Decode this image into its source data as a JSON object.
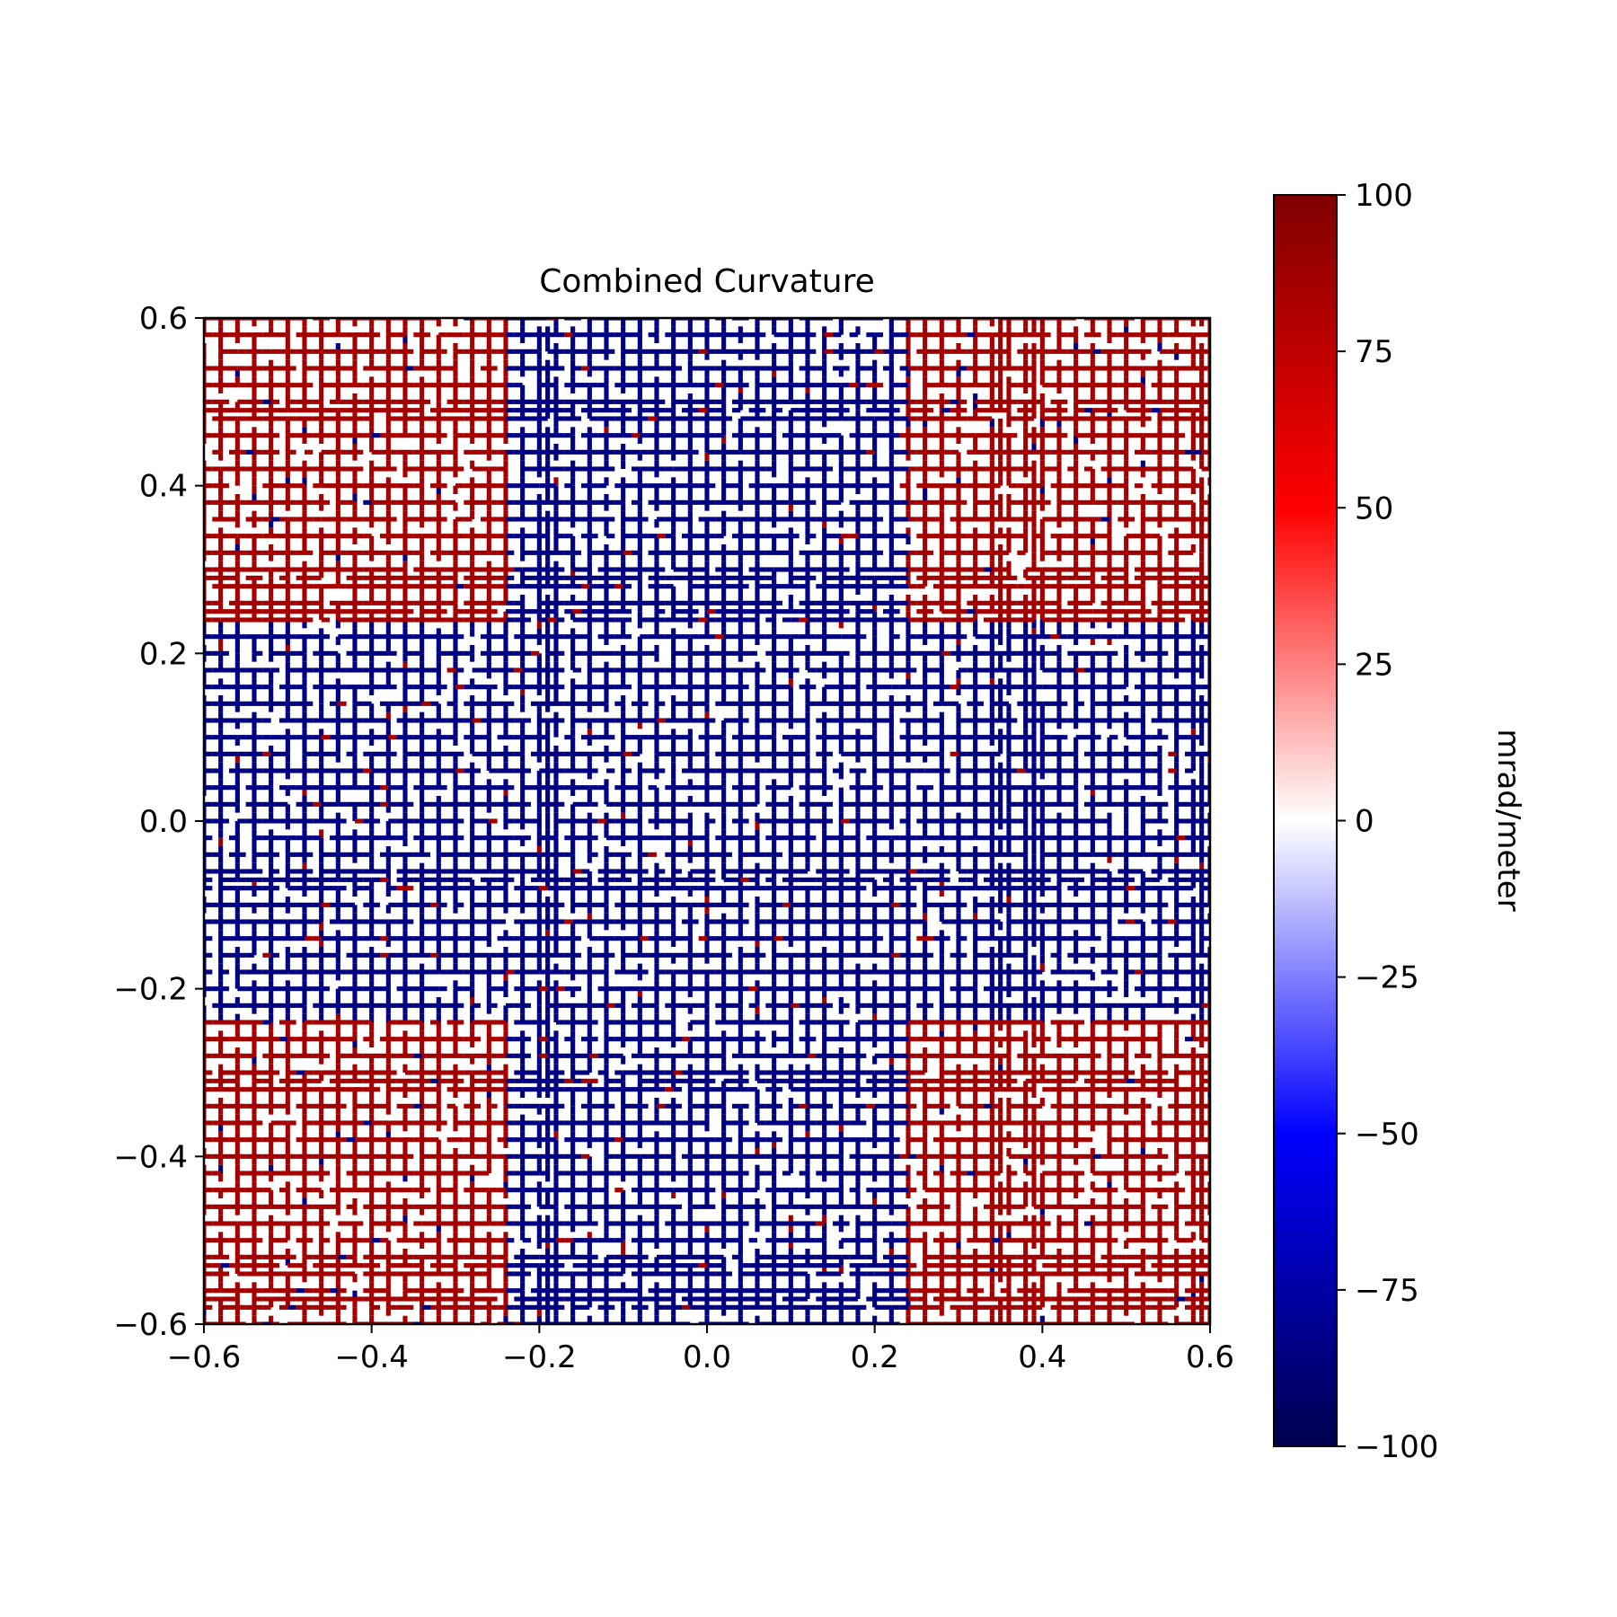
{
  "chart_data": {
    "type": "heatmap",
    "title": "Combined Curvature",
    "xlabel": "",
    "ylabel": "",
    "xlim": [
      -0.6,
      0.6
    ],
    "ylim": [
      -0.6,
      0.6
    ],
    "x_ticks": [
      -0.6,
      -0.4,
      -0.2,
      0.0,
      0.2,
      0.4,
      0.6
    ],
    "x_tick_labels": [
      "−0.6",
      "−0.4",
      "−0.2",
      "0.0",
      "0.2",
      "0.4",
      "0.6"
    ],
    "y_ticks": [
      -0.6,
      -0.4,
      -0.2,
      0.0,
      0.2,
      0.4,
      0.6
    ],
    "y_tick_labels": [
      "−0.6",
      "−0.4",
      "−0.2",
      "0.0",
      "0.2",
      "0.4",
      "0.6"
    ],
    "grid": false,
    "colormap": "seismic",
    "colorbar": {
      "label": "mrad/meter",
      "range": [
        -100,
        100
      ],
      "ticks": [
        100,
        75,
        50,
        25,
        0,
        -25,
        -50,
        -75,
        -100
      ],
      "tick_labels": [
        "100",
        "75",
        "50",
        "25",
        "0",
        "−25",
        "−50",
        "−75",
        "−100"
      ],
      "stops": [
        {
          "value": -100,
          "color": "#00004c"
        },
        {
          "value": -50,
          "color": "#0000ff"
        },
        {
          "value": 0,
          "color": "#ffffff"
        },
        {
          "value": 50,
          "color": "#ff0000"
        },
        {
          "value": 100,
          "color": "#7f0000"
        }
      ]
    },
    "field": {
      "description_regions": "corners positive (~+85); central cross band |x|<0.25 or |y|<0.25 negative (~-85); lattice of thin lines on zero background",
      "positive_value": 85,
      "negative_value": -85,
      "band_half_width": 0.24
    }
  }
}
